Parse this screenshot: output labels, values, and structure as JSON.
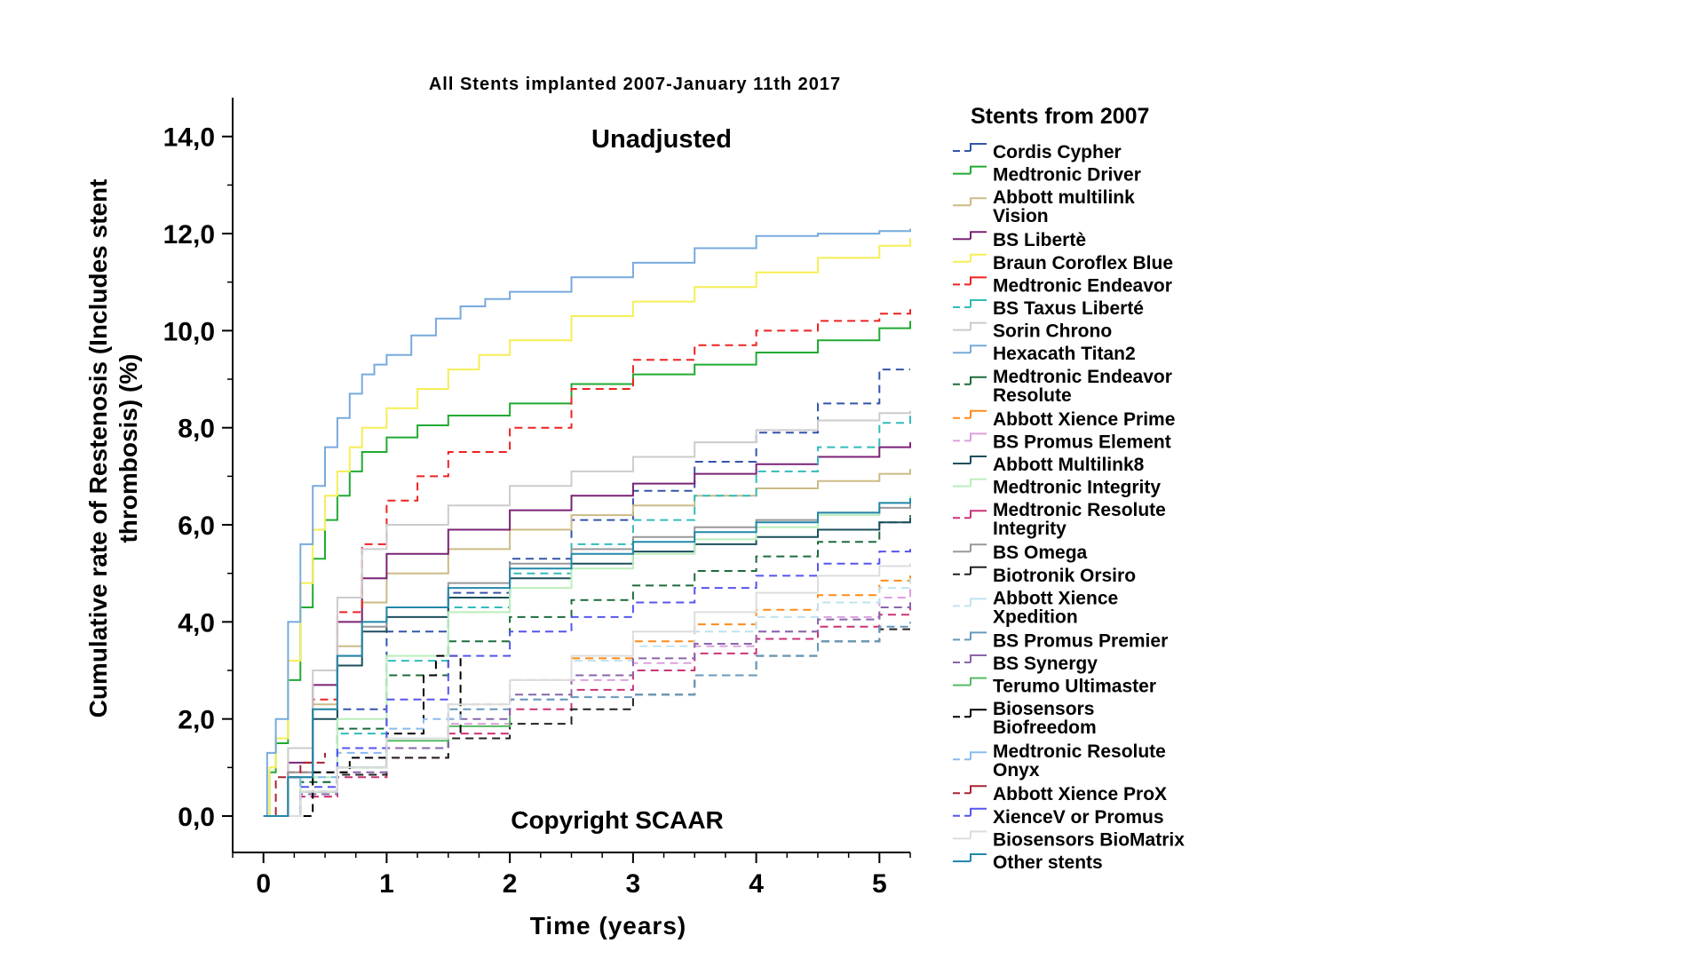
{
  "chart_data": {
    "type": "line",
    "title": "All Stents implanted 2007-January 11th 2017",
    "inner_title": "Unadjusted",
    "watermark": "Copyright SCAAR",
    "xlabel": "Time (years)",
    "ylabel": "Cumulative rate of Restenosis (Includes stent thrombosis) (%)",
    "ylabel_lines": [
      "Cumulative rate of Restenosis (Includes stent",
      "thrombosis) (%)"
    ],
    "xlim": [
      -0.25,
      5.25
    ],
    "ylim": [
      -0.75,
      14.8
    ],
    "x_ticks": [
      0,
      1,
      2,
      3,
      4,
      5
    ],
    "x_tick_labels": [
      "0",
      "1",
      "2",
      "3",
      "4",
      "5"
    ],
    "y_ticks": [
      0,
      2,
      4,
      6,
      8,
      10,
      12,
      14
    ],
    "y_tick_labels": [
      "0,0",
      "2,0",
      "4,0",
      "6,0",
      "8,0",
      "10,0",
      "12,0",
      "14,0"
    ],
    "grid": false,
    "legend": {
      "title": "Stents from 2007",
      "placement": "right"
    },
    "series": [
      {
        "name": "Cordis Cypher",
        "color": "#3355AA",
        "dash": true,
        "x": [
          0,
          0.3,
          0.6,
          1,
          1.5,
          2,
          2.5,
          3,
          3.5,
          4,
          4.5,
          5,
          5.25
        ],
        "y": [
          0,
          0.9,
          2.2,
          3.8,
          4.6,
          5.3,
          6.1,
          6.7,
          7.3,
          7.9,
          8.5,
          9.2,
          9.2
        ]
      },
      {
        "name": "Medtronic Driver",
        "color": "#22AA33",
        "dash": false,
        "x": [
          0,
          0.05,
          0.1,
          0.2,
          0.3,
          0.4,
          0.5,
          0.6,
          0.7,
          0.8,
          1,
          1.25,
          1.5,
          2,
          2.5,
          3,
          3.5,
          4,
          4.5,
          5,
          5.25
        ],
        "y": [
          0,
          0.9,
          1.5,
          2.8,
          4.3,
          5.3,
          6.1,
          6.6,
          7.1,
          7.5,
          7.8,
          8.05,
          8.25,
          8.5,
          8.9,
          9.1,
          9.3,
          9.55,
          9.8,
          10.05,
          10.2
        ]
      },
      {
        "name": "Abbott multilink Vision",
        "color": "#CCBB88",
        "dash": false,
        "x": [
          0,
          0.2,
          0.4,
          0.6,
          0.8,
          1,
          1.5,
          2,
          2.5,
          3,
          3.5,
          4,
          4.5,
          5,
          5.25
        ],
        "y": [
          0,
          0.9,
          2.3,
          3.5,
          4.4,
          5.0,
          5.5,
          5.9,
          6.2,
          6.4,
          6.6,
          6.75,
          6.9,
          7.05,
          7.15
        ]
      },
      {
        "name": "BS Libertè",
        "color": "#7A2375",
        "dash": false,
        "x": [
          0,
          0.2,
          0.4,
          0.6,
          0.8,
          1,
          1.5,
          2,
          2.5,
          3,
          3.5,
          4,
          4.5,
          5,
          5.25
        ],
        "y": [
          0,
          1.1,
          2.7,
          4.0,
          4.9,
          5.4,
          5.9,
          6.3,
          6.6,
          6.85,
          7.05,
          7.25,
          7.4,
          7.6,
          7.7
        ]
      },
      {
        "name": "Braun Coroflex Blue",
        "color": "#F5EE55",
        "dash": false,
        "x": [
          0,
          0.05,
          0.1,
          0.2,
          0.3,
          0.4,
          0.5,
          0.6,
          0.7,
          0.8,
          1,
          1.25,
          1.5,
          1.75,
          2,
          2.5,
          3,
          3.5,
          4,
          4.5,
          5,
          5.25
        ],
        "y": [
          0,
          1.0,
          1.6,
          3.2,
          4.8,
          5.9,
          6.6,
          7.1,
          7.6,
          8.0,
          8.4,
          8.8,
          9.2,
          9.5,
          9.8,
          10.3,
          10.6,
          10.9,
          11.2,
          11.5,
          11.75,
          11.9
        ]
      },
      {
        "name": "Medtronic Endeavor",
        "color": "#EE2222",
        "dash": true,
        "x": [
          0,
          0.2,
          0.4,
          0.6,
          0.8,
          1,
          1.25,
          1.5,
          2,
          2.5,
          3,
          3.5,
          4,
          4.5,
          5,
          5.25
        ],
        "y": [
          0,
          0.9,
          2.4,
          4.2,
          5.6,
          6.5,
          7.0,
          7.5,
          8.0,
          8.8,
          9.4,
          9.7,
          10.0,
          10.2,
          10.35,
          10.45
        ]
      },
      {
        "name": "BS Taxus Liberté",
        "color": "#33BBBB",
        "dash": true,
        "x": [
          0,
          0.3,
          0.6,
          1,
          1.5,
          2,
          2.5,
          3,
          3.5,
          4,
          4.5,
          5,
          5.25
        ],
        "y": [
          0,
          0.7,
          1.7,
          3.2,
          4.3,
          5.0,
          5.6,
          6.1,
          6.6,
          7.1,
          7.6,
          8.1,
          8.3
        ]
      },
      {
        "name": "Sorin Chrono",
        "color": "#CCCCCC",
        "dash": false,
        "x": [
          0,
          0.2,
          0.4,
          0.6,
          0.8,
          1,
          1.5,
          2,
          2.5,
          3,
          3.5,
          4,
          4.5,
          5,
          5.25
        ],
        "y": [
          0,
          1.4,
          3.0,
          4.5,
          5.5,
          6.0,
          6.4,
          6.8,
          7.1,
          7.4,
          7.7,
          7.95,
          8.15,
          8.3,
          8.35
        ]
      },
      {
        "name": "Hexacath Titan2",
        "color": "#77AADD",
        "dash": false,
        "x": [
          0,
          0.03,
          0.1,
          0.2,
          0.3,
          0.4,
          0.5,
          0.6,
          0.7,
          0.8,
          0.9,
          1,
          1.2,
          1.4,
          1.6,
          1.8,
          2,
          2.5,
          3,
          3.5,
          4,
          4.5,
          5,
          5.25
        ],
        "y": [
          0,
          1.3,
          2.0,
          4.0,
          5.6,
          6.8,
          7.6,
          8.2,
          8.7,
          9.1,
          9.3,
          9.5,
          9.9,
          10.25,
          10.5,
          10.65,
          10.8,
          11.1,
          11.4,
          11.7,
          11.95,
          12.0,
          12.05,
          12.1
        ]
      },
      {
        "name": "Medtronic Endeavor Resolute",
        "color": "#1E6B3C",
        "dash": true,
        "x": [
          0,
          0.3,
          0.6,
          1,
          1.5,
          2,
          2.5,
          3,
          3.5,
          4,
          4.5,
          5,
          5.25
        ],
        "y": [
          0,
          0.7,
          1.8,
          2.9,
          3.6,
          4.1,
          4.45,
          4.75,
          5.05,
          5.35,
          5.65,
          6.05,
          6.2
        ]
      },
      {
        "name": "Abbott Xience Prime",
        "color": "#FF8C1A",
        "dash": true,
        "x": [
          0,
          0.3,
          0.6,
          1,
          1.5,
          2,
          2.5,
          3,
          3.5,
          4,
          4.5,
          5,
          5.25
        ],
        "y": [
          0,
          0.5,
          1.0,
          1.6,
          2.3,
          2.8,
          3.25,
          3.6,
          3.95,
          4.25,
          4.55,
          4.85,
          5.05
        ]
      },
      {
        "name": "BS Promus Element",
        "color": "#DDA0DD",
        "dash": true,
        "x": [
          0,
          0.3,
          0.6,
          1,
          1.5,
          2,
          2.5,
          3,
          3.5,
          4,
          4.5,
          5,
          5.25
        ],
        "y": [
          0,
          0.4,
          0.9,
          1.4,
          1.9,
          2.4,
          2.8,
          3.15,
          3.5,
          3.8,
          4.1,
          4.5,
          4.8
        ]
      },
      {
        "name": "Abbott Multilink8",
        "color": "#1D4F5C",
        "dash": false,
        "x": [
          0,
          0.2,
          0.4,
          0.6,
          0.8,
          1,
          1.5,
          2,
          2.5,
          3,
          3.5,
          4,
          4.5,
          5,
          5.25
        ],
        "y": [
          0,
          0.8,
          2.0,
          3.1,
          3.8,
          4.1,
          4.5,
          4.9,
          5.2,
          5.45,
          5.6,
          5.75,
          5.9,
          6.05,
          6.15
        ]
      },
      {
        "name": "Medtronic Integrity",
        "color": "#BBEEBB",
        "dash": false,
        "x": [
          0,
          0.3,
          0.6,
          1,
          1.5,
          2,
          2.5,
          3,
          3.5,
          4,
          4.5,
          5,
          5.25
        ],
        "y": [
          0,
          0.8,
          2.0,
          3.3,
          4.2,
          4.7,
          5.1,
          5.4,
          5.7,
          5.95,
          6.2,
          6.45,
          6.6
        ]
      },
      {
        "name": "Medtronic Resolute Integrity",
        "color": "#CC3377",
        "dash": true,
        "x": [
          0,
          0.3,
          0.6,
          1,
          1.5,
          2,
          2.5,
          3,
          3.5,
          4,
          4.5,
          5,
          5.25
        ],
        "y": [
          0,
          0.4,
          0.8,
          1.2,
          1.7,
          2.2,
          2.6,
          3.0,
          3.35,
          3.65,
          3.9,
          4.15,
          4.3
        ]
      },
      {
        "name": "BS Omega",
        "color": "#999999",
        "dash": false,
        "x": [
          0,
          0.2,
          0.4,
          0.6,
          0.8,
          1,
          1.5,
          2,
          2.5,
          3,
          3.5,
          4,
          4.5,
          5,
          5.25
        ],
        "y": [
          0,
          0.9,
          2.2,
          3.3,
          3.9,
          4.3,
          4.8,
          5.2,
          5.5,
          5.75,
          5.95,
          6.1,
          6.25,
          6.35,
          6.45
        ]
      },
      {
        "name": "Biotronik Orsiro",
        "color": "#222222",
        "dash": true,
        "x": [
          0,
          0.3,
          0.6,
          1,
          1.5,
          2,
          2.5,
          3,
          3.5,
          4,
          4.5,
          5,
          5.25
        ],
        "y": [
          0,
          0.5,
          0.85,
          1.2,
          1.6,
          1.9,
          2.2,
          2.5,
          2.9,
          3.3,
          3.6,
          3.85,
          3.85
        ]
      },
      {
        "name": "Abbott Xience Xpedition",
        "color": "#BFE3EE",
        "dash": true,
        "x": [
          0,
          0.3,
          0.6,
          1,
          1.5,
          2,
          2.5,
          3,
          3.5,
          4,
          4.5,
          5,
          5.25
        ],
        "y": [
          0,
          0.5,
          1.0,
          1.6,
          2.3,
          2.8,
          3.2,
          3.5,
          3.8,
          4.1,
          4.4,
          4.7,
          4.9
        ]
      },
      {
        "name": "BS Promus Premier",
        "color": "#6699BB",
        "dash": true,
        "x": [
          0,
          0.3,
          0.6,
          1,
          1.5,
          2,
          2.5,
          3,
          3.5,
          4,
          4.5,
          5,
          5.25
        ],
        "y": [
          0,
          0.5,
          1.0,
          1.6,
          2.2,
          2.4,
          2.45,
          2.5,
          2.9,
          3.3,
          3.6,
          3.9,
          4.0
        ]
      },
      {
        "name": "BS Synergy",
        "color": "#8866AA",
        "dash": true,
        "x": [
          0,
          0.3,
          0.6,
          1,
          1.5,
          2,
          2.5,
          3,
          3.5,
          4,
          4.5,
          5,
          5.25
        ],
        "y": [
          0,
          0.45,
          0.9,
          1.4,
          2.0,
          2.5,
          2.9,
          3.25,
          3.55,
          3.8,
          4.05,
          4.3,
          4.45
        ]
      },
      {
        "name": "Terumo Ultimaster",
        "color": "#55BB66",
        "dash": false,
        "x": [
          0,
          0.3,
          0.6,
          1,
          1.5,
          2
        ],
        "y": [
          0,
          0.5,
          1.0,
          1.55,
          1.85,
          2.05
        ]
      },
      {
        "name": "Biosensors Biofreedom",
        "color": "#000000",
        "dash": true,
        "x": [
          0,
          0.4,
          0.7,
          1,
          1.3,
          1.4,
          1.6
        ],
        "y": [
          0,
          0.9,
          1.2,
          1.7,
          2.9,
          3.3,
          1.7
        ]
      },
      {
        "name": "Medtronic Resolute Onyx",
        "color": "#88BBEE",
        "dash": true,
        "x": [
          0,
          0.3,
          0.6,
          1,
          1.3,
          1.6
        ],
        "y": [
          0,
          0.8,
          1.3,
          1.8,
          2.0,
          2.1
        ]
      },
      {
        "name": "Abbott Xience ProX",
        "color": "#AA2233",
        "dash": true,
        "x": [
          0,
          0.1,
          0.3,
          0.5
        ],
        "y": [
          0,
          0.8,
          1.1,
          1.3
        ]
      },
      {
        "name": "XienceV or Promus",
        "color": "#5555EE",
        "dash": true,
        "x": [
          0,
          0.3,
          0.6,
          1,
          1.5,
          2,
          2.5,
          3,
          3.5,
          4,
          4.5,
          5,
          5.25
        ],
        "y": [
          0,
          0.6,
          1.4,
          2.4,
          3.3,
          3.8,
          4.1,
          4.4,
          4.7,
          4.95,
          5.2,
          5.45,
          5.6
        ]
      },
      {
        "name": "Biosensors BioMatrix",
        "color": "#DDDDDD",
        "dash": false,
        "x": [
          0,
          0.3,
          0.6,
          1,
          1.5,
          2,
          2.5,
          3,
          3.5,
          4,
          4.5,
          5,
          5.25
        ],
        "y": [
          0,
          0.5,
          1.0,
          1.6,
          2.3,
          2.8,
          3.3,
          3.8,
          4.2,
          4.6,
          4.95,
          5.15,
          5.2
        ]
      },
      {
        "name": "Other stents",
        "color": "#2288AA",
        "dash": false,
        "x": [
          0,
          0.2,
          0.4,
          0.6,
          0.8,
          1,
          1.5,
          2,
          2.5,
          3,
          3.5,
          4,
          4.5,
          5,
          5.25
        ],
        "y": [
          0,
          0.8,
          2.2,
          3.3,
          4.0,
          4.3,
          4.7,
          5.1,
          5.4,
          5.65,
          5.85,
          6.05,
          6.25,
          6.45,
          6.55
        ]
      }
    ]
  }
}
